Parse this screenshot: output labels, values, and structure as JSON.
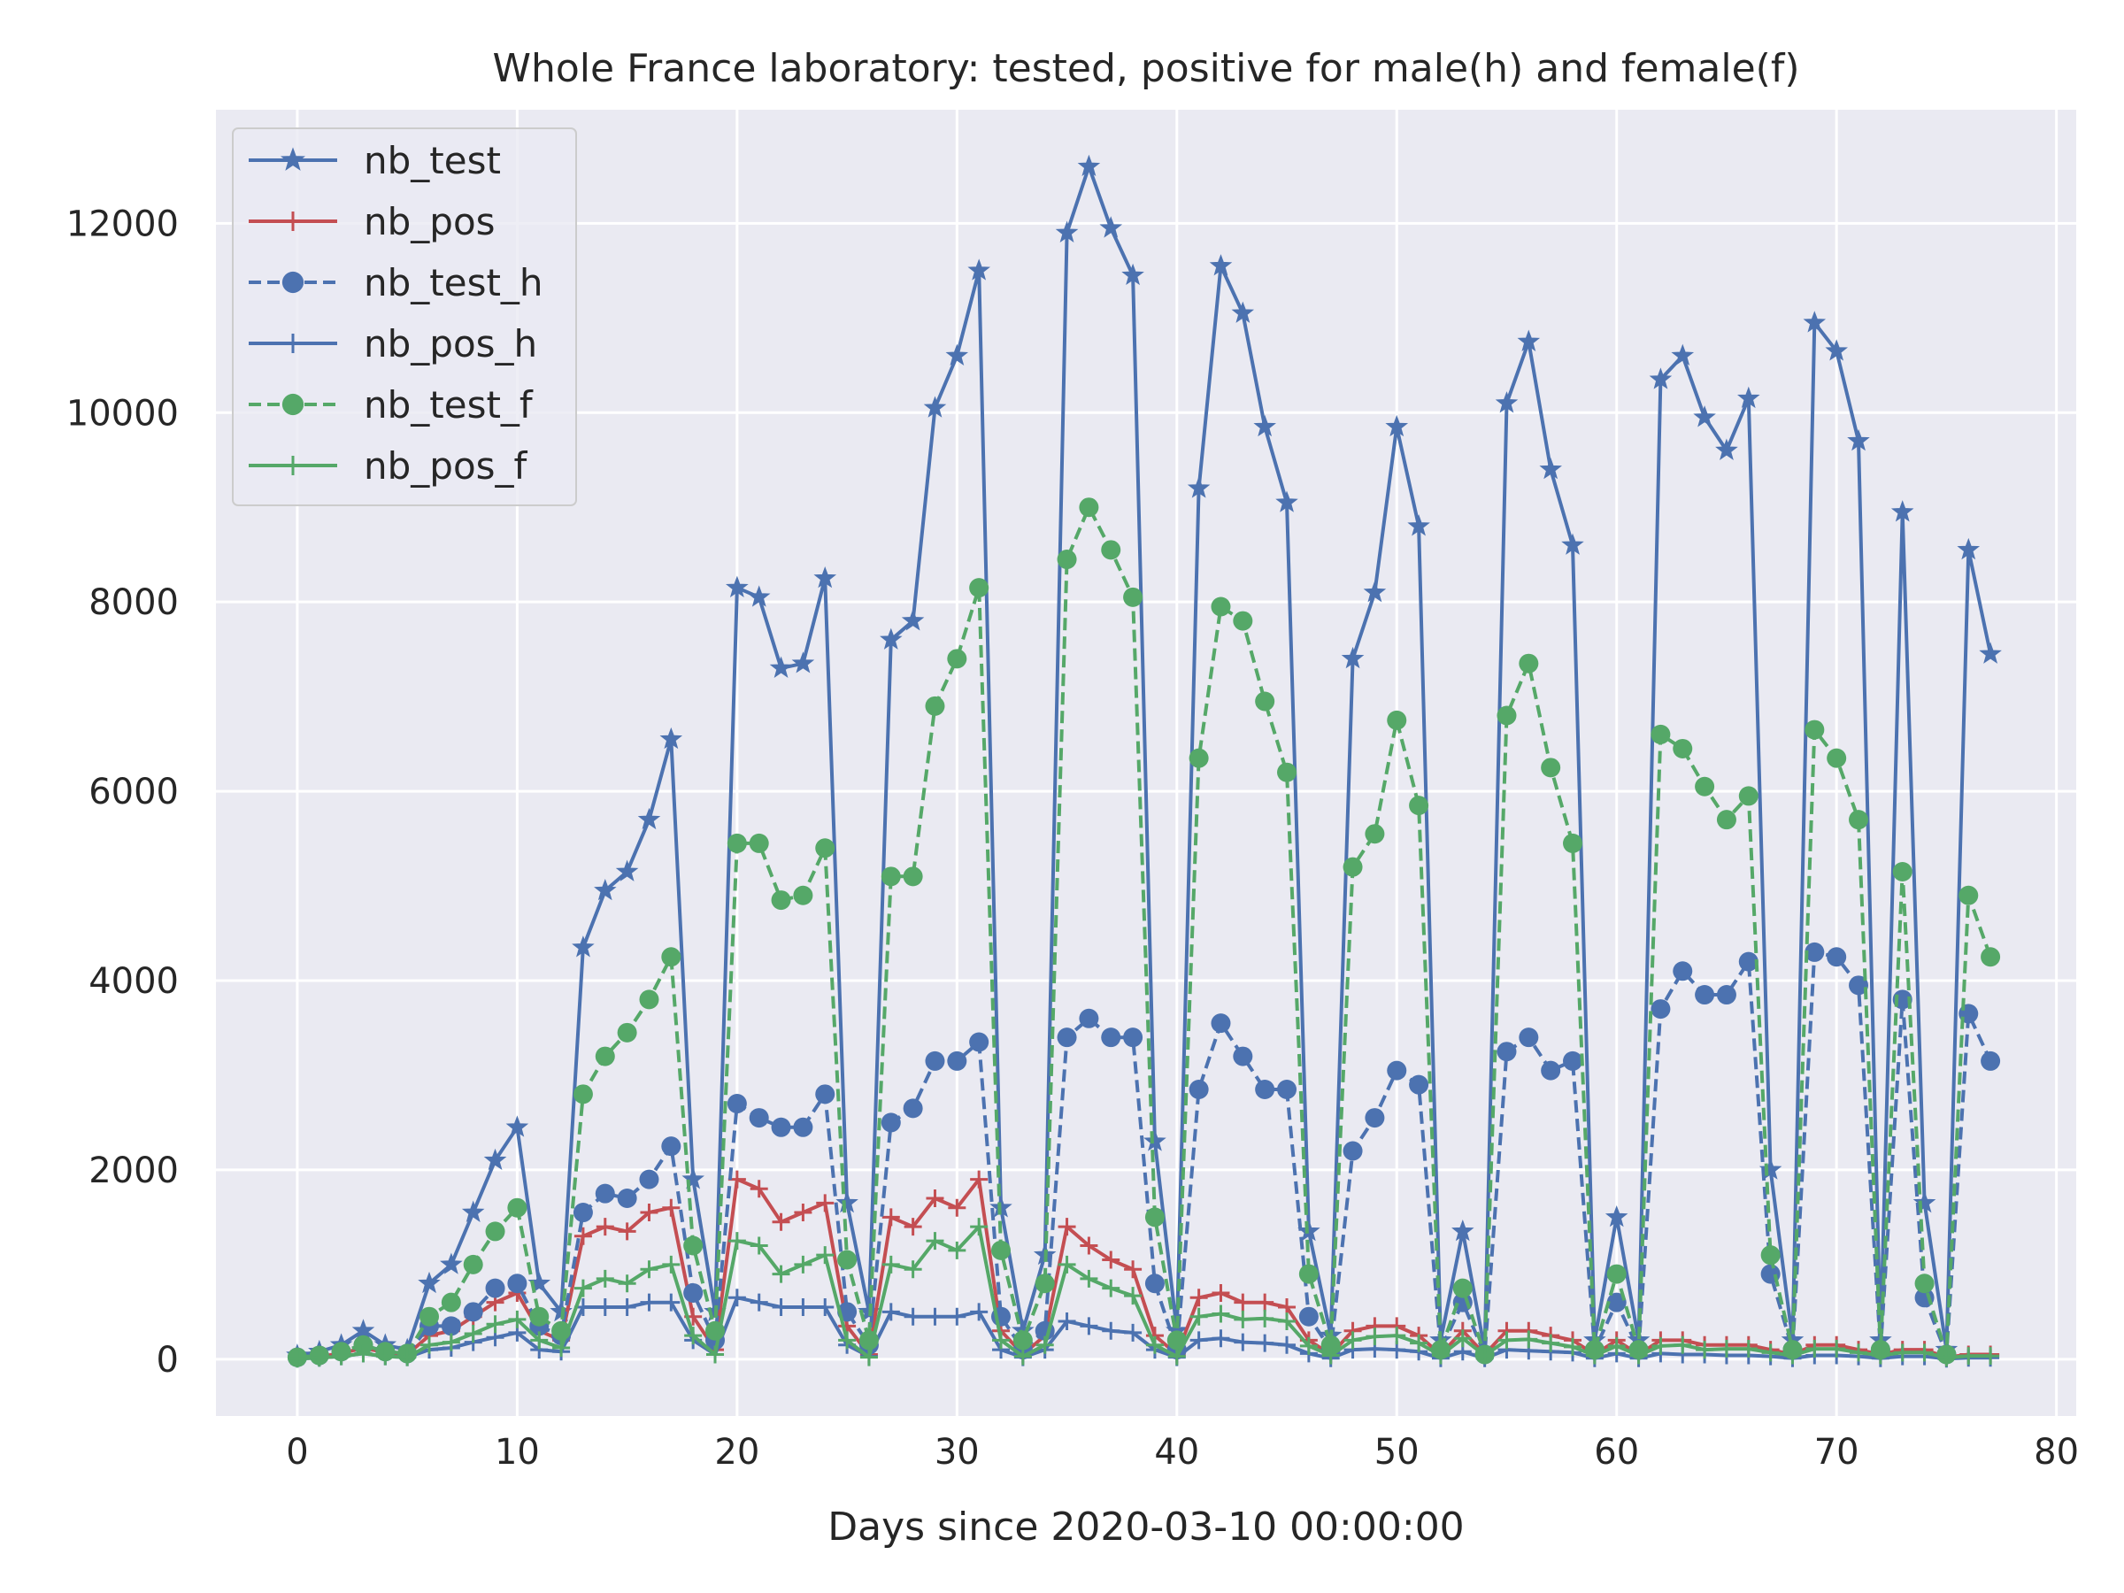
{
  "chart_data": {
    "type": "line",
    "title": "Whole France laboratory: tested, positive for male(h) and female(f)",
    "xlabel": "Days since 2020-03-10 00:00:00",
    "ylabel": "",
    "xlim": [
      -3.7,
      80.9
    ],
    "ylim": [
      -600,
      13200
    ],
    "xticks": [
      0,
      10,
      20,
      30,
      40,
      50,
      60,
      70,
      80
    ],
    "xtick_labels": [
      "0",
      "10",
      "20",
      "30",
      "40",
      "50",
      "60",
      "70",
      "80"
    ],
    "yticks": [
      0,
      2000,
      4000,
      6000,
      8000,
      10000,
      12000
    ],
    "ytick_labels": [
      "0",
      "2000",
      "4000",
      "6000",
      "8000",
      "10000",
      "12000"
    ],
    "grid": true,
    "legend_position": "top-left",
    "background": "#eaeaf2",
    "series": [
      {
        "name": "nb_test",
        "color": "#4c72b0",
        "line": "solid",
        "marker": "star",
        "values": [
          40,
          80,
          150,
          300,
          150,
          100,
          800,
          1000,
          1550,
          2100,
          2450,
          800,
          500,
          4350,
          4950,
          5150,
          5700,
          6550,
          1900,
          500,
          8150,
          8050,
          7300,
          7350,
          8250,
          1650,
          500,
          7600,
          7800,
          10050,
          10600,
          11500,
          1600,
          300,
          1100,
          11900,
          12600,
          11950,
          11450,
          2300,
          300,
          9200,
          11550,
          11050,
          9850,
          9050,
          1350,
          250,
          7400,
          8100,
          9850,
          8800,
          200,
          1350,
          100,
          10100,
          10750,
          9400,
          8600,
          200,
          1500,
          200,
          10350,
          10600,
          9950,
          9600,
          10150,
          2000,
          200,
          10950,
          10650,
          9700,
          200,
          8950,
          1650,
          100,
          8550,
          7450
        ]
      },
      {
        "name": "nb_pos",
        "color": "#c44e52",
        "line": "solid",
        "marker": "plus",
        "values": [
          10,
          30,
          60,
          120,
          70,
          50,
          250,
          300,
          450,
          600,
          700,
          300,
          200,
          1300,
          1400,
          1350,
          1550,
          1600,
          450,
          100,
          1900,
          1800,
          1450,
          1550,
          1650,
          350,
          50,
          1500,
          1400,
          1700,
          1600,
          1900,
          300,
          50,
          250,
          1400,
          1200,
          1050,
          950,
          250,
          50,
          650,
          700,
          600,
          600,
          550,
          200,
          50,
          300,
          350,
          350,
          250,
          50,
          300,
          50,
          300,
          300,
          250,
          200,
          50,
          200,
          50,
          200,
          200,
          150,
          150,
          150,
          100,
          50,
          150,
          150,
          100,
          50,
          100,
          100,
          20,
          50,
          50
        ]
      },
      {
        "name": "nb_test_h",
        "color": "#4c72b0",
        "line": "dashed",
        "marker": "circle",
        "values": [
          20,
          40,
          80,
          150,
          80,
          60,
          350,
          350,
          500,
          750,
          800,
          350,
          250,
          1550,
          1750,
          1700,
          1900,
          2250,
          700,
          200,
          2700,
          2550,
          2450,
          2450,
          2800,
          500,
          150,
          2500,
          2650,
          3150,
          3150,
          3350,
          450,
          100,
          300,
          3400,
          3600,
          3400,
          3400,
          800,
          100,
          2850,
          3550,
          3200,
          2850,
          2850,
          450,
          100,
          2200,
          2550,
          3050,
          2900,
          100,
          600,
          50,
          3250,
          3400,
          3050,
          3150,
          100,
          600,
          100,
          3700,
          4100,
          3850,
          3850,
          4200,
          900,
          100,
          4300,
          4250,
          3950,
          100,
          3800,
          650,
          50,
          3650,
          3150
        ]
      },
      {
        "name": "nb_pos_h",
        "color": "#4c72b0",
        "line": "solid",
        "marker": "plus",
        "values": [
          5,
          15,
          30,
          60,
          30,
          20,
          100,
          120,
          180,
          230,
          280,
          100,
          80,
          550,
          550,
          550,
          600,
          600,
          200,
          50,
          650,
          600,
          550,
          550,
          550,
          150,
          30,
          500,
          450,
          450,
          450,
          500,
          100,
          20,
          100,
          400,
          350,
          300,
          280,
          100,
          20,
          200,
          220,
          180,
          170,
          150,
          60,
          10,
          100,
          110,
          100,
          80,
          10,
          80,
          10,
          100,
          90,
          80,
          70,
          10,
          60,
          10,
          60,
          50,
          50,
          40,
          40,
          30,
          10,
          40,
          40,
          30,
          10,
          30,
          30,
          5,
          15,
          15
        ]
      },
      {
        "name": "nb_test_f",
        "color": "#55a868",
        "line": "dashed",
        "marker": "circle",
        "values": [
          20,
          40,
          80,
          150,
          80,
          60,
          450,
          600,
          1000,
          1350,
          1600,
          450,
          300,
          2800,
          3200,
          3450,
          3800,
          4250,
          1200,
          300,
          5450,
          5450,
          4850,
          4900,
          5400,
          1050,
          200,
          5100,
          5100,
          6900,
          7400,
          8150,
          1150,
          200,
          800,
          8450,
          9000,
          8550,
          8050,
          1500,
          200,
          6350,
          7950,
          7800,
          6950,
          6200,
          900,
          150,
          5200,
          5550,
          6750,
          5850,
          100,
          750,
          50,
          6800,
          7350,
          6250,
          5450,
          100,
          900,
          100,
          6600,
          6450,
          6050,
          5700,
          5950,
          1100,
          100,
          6650,
          6350,
          5700,
          100,
          5150,
          800,
          50,
          4900,
          4250
        ]
      },
      {
        "name": "nb_pos_f",
        "color": "#55a868",
        "line": "solid",
        "marker": "plus",
        "values": [
          5,
          15,
          30,
          60,
          30,
          20,
          150,
          180,
          270,
          370,
          420,
          200,
          120,
          750,
          850,
          800,
          950,
          1000,
          250,
          50,
          1250,
          1200,
          900,
          1000,
          1100,
          200,
          20,
          1000,
          950,
          1250,
          1150,
          1400,
          200,
          30,
          150,
          1000,
          850,
          750,
          670,
          150,
          30,
          450,
          480,
          420,
          430,
          400,
          140,
          40,
          200,
          240,
          250,
          170,
          40,
          220,
          40,
          200,
          210,
          170,
          130,
          40,
          140,
          40,
          140,
          150,
          100,
          110,
          110,
          70,
          40,
          110,
          110,
          70,
          40,
          70,
          70,
          15,
          35,
          35
        ]
      }
    ]
  }
}
